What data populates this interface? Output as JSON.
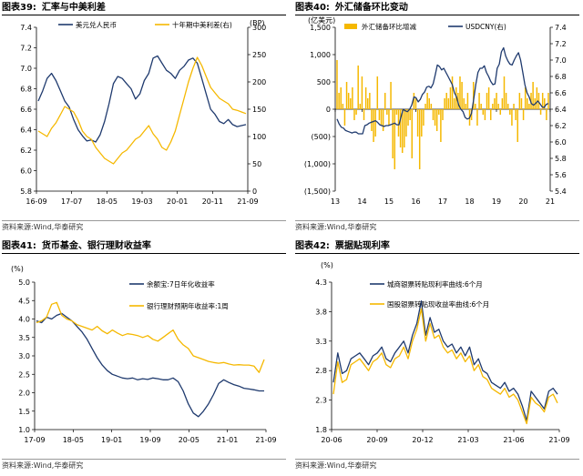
{
  "panels": [
    {
      "title_num": "图表39:",
      "title": "汇率与中美利差",
      "source": "资料来源:Wind,华泰研究",
      "chart_data": {
        "type": "line",
        "x_ticks": [
          "16-09",
          "17-07",
          "18-05",
          "19-03",
          "20-01",
          "20-11",
          "21-09"
        ],
        "yleft": {
          "label": "",
          "ticks": [
            5.8,
            6.0,
            6.2,
            6.4,
            6.6,
            6.8,
            7.0,
            7.2,
            7.4
          ],
          "range": [
            5.8,
            7.4
          ]
        },
        "yright": {
          "label": "(BP)",
          "ticks": [
            0,
            50,
            100,
            150,
            200,
            250,
            300
          ],
          "range": [
            0,
            300
          ]
        },
        "grid": false,
        "legend": "top",
        "series": [
          {
            "name": "美元兑人民币",
            "axis": "left",
            "color": "#1F3A6E",
            "y": [
              6.68,
              6.78,
              6.9,
              6.95,
              6.88,
              6.78,
              6.68,
              6.62,
              6.5,
              6.4,
              6.34,
              6.29,
              6.3,
              6.28,
              6.35,
              6.48,
              6.65,
              6.85,
              6.92,
              6.9,
              6.85,
              6.8,
              6.7,
              6.75,
              6.88,
              6.95,
              7.1,
              7.12,
              7.05,
              6.98,
              6.95,
              6.9,
              6.98,
              7.02,
              7.08,
              7.1,
              7.05,
              6.9,
              6.75,
              6.6,
              6.55,
              6.48,
              6.46,
              6.5,
              6.45,
              6.43,
              6.44,
              6.45
            ]
          },
          {
            "name": "十年期中美利差(右)",
            "axis": "right",
            "color": "#F5B800",
            "y": [
              110,
              105,
              100,
              115,
              125,
              140,
              155,
              150,
              145,
              130,
              110,
              100,
              95,
              80,
              70,
              60,
              55,
              50,
              60,
              70,
              75,
              85,
              95,
              100,
              110,
              120,
              105,
              95,
              80,
              75,
              90,
              110,
              140,
              170,
              200,
              225,
              245,
              230,
              210,
              190,
              180,
              170,
              165,
              160,
              150,
              148,
              145,
              142
            ]
          }
        ]
      }
    },
    {
      "title_num": "图表40:",
      "title": "外汇储备环比变动",
      "source": "资料来源:Wind,华泰研究",
      "chart_data": {
        "type": "bar",
        "x_ticks": [
          "13",
          "14",
          "15",
          "16",
          "17",
          "18",
          "19",
          "20",
          "21"
        ],
        "yleft": {
          "label": "(亿美元)",
          "ticks": [
            -1500,
            -1000,
            -500,
            0,
            500,
            1000,
            1500
          ],
          "tick_labels": [
            "(1,500)",
            "(1,000)",
            "(500)",
            "0",
            "500",
            "1,000",
            "1,500"
          ],
          "range": [
            -1500,
            1500
          ]
        },
        "yright": {
          "label": "",
          "ticks": [
            5.4,
            5.6,
            5.8,
            6.0,
            6.2,
            6.4,
            6.6,
            6.8,
            7.0,
            7.2,
            7.4
          ],
          "range": [
            5.4,
            7.4
          ]
        },
        "grid": false,
        "legend": "top",
        "series": [
          {
            "name": "外汇储备环比增减",
            "axis": "left",
            "type": "bar",
            "color": "#F5B800",
            "y": [
              900,
              300,
              400,
              100,
              -300,
              500,
              300,
              200,
              400,
              -200,
              -100,
              800,
              100,
              600,
              -200,
              400,
              200,
              300,
              -400,
              -600,
              -500,
              600,
              -200,
              -300,
              -400,
              300,
              -100,
              -300,
              500,
              -900,
              -1100,
              -100,
              -500,
              -700,
              -800,
              -700,
              -500,
              -300,
              -200,
              -900,
              300,
              200,
              -500,
              -1100,
              -500,
              -300,
              100,
              300,
              200,
              100,
              -200,
              -300,
              -400,
              -100,
              -600,
              -200,
              200,
              300,
              200,
              400,
              600,
              200,
              400,
              300,
              600,
              500,
              200,
              100,
              300,
              -300,
              -200,
              500,
              100,
              -300,
              300,
              100,
              -100,
              -200,
              300,
              400,
              -200,
              100,
              200,
              300,
              100,
              -100,
              200,
              600,
              300,
              100,
              -100,
              -300,
              100,
              -200,
              -600,
              300,
              200,
              -200,
              400,
              200,
              100,
              300,
              500,
              200,
              400,
              300,
              -100,
              300,
              200,
              -200,
              300
            ]
          },
          {
            "name": "USDCNY(右)",
            "axis": "right",
            "type": "line",
            "color": "#1F3A6E",
            "y": [
              6.28,
              6.22,
              6.18,
              6.17,
              6.14,
              6.13,
              6.12,
              6.11,
              6.12,
              6.12,
              6.1,
              6.1,
              6.1,
              6.2,
              6.21,
              6.23,
              6.24,
              6.25,
              6.26,
              6.24,
              6.21,
              6.2,
              6.19,
              6.2,
              6.2,
              6.21,
              6.22,
              6.23,
              6.21,
              6.21,
              6.31,
              6.4,
              6.38,
              6.37,
              6.4,
              6.45,
              6.55,
              6.54,
              6.49,
              6.52,
              6.58,
              6.61,
              6.67,
              6.68,
              6.66,
              6.71,
              6.82,
              6.94,
              6.92,
              6.88,
              6.9,
              6.85,
              6.8,
              6.75,
              6.7,
              6.6,
              6.55,
              6.45,
              6.4,
              6.37,
              6.3,
              6.28,
              6.29,
              6.35,
              6.52,
              6.7,
              6.85,
              6.9,
              6.9,
              6.93,
              6.85,
              6.8,
              6.74,
              6.7,
              6.71,
              6.9,
              6.95,
              7.1,
              7.15,
              7.05,
              6.99,
              6.95,
              6.94,
              7.0,
              7.05,
              7.09,
              7.0,
              6.85,
              6.7,
              6.6,
              6.55,
              6.47,
              6.45,
              6.47,
              6.5,
              6.47,
              6.43,
              6.42,
              6.46,
              6.47
            ]
          }
        ]
      }
    },
    {
      "title_num": "图表41:",
      "title": "货币基金、银行理财收益率",
      "source": "资料来源:Wind,华泰研究",
      "chart_data": {
        "type": "line",
        "x_ticks": [
          "17-09",
          "18-05",
          "19-01",
          "19-09",
          "20-05",
          "21-01",
          "21-09"
        ],
        "yleft": {
          "label": "(%)",
          "ticks": [
            1.0,
            1.5,
            2.0,
            2.5,
            3.0,
            3.5,
            4.0,
            4.5,
            5.0
          ],
          "range": [
            1.0,
            5.0
          ]
        },
        "grid": false,
        "legend": "top-right",
        "series": [
          {
            "name": "余额宝:7日年化收益率",
            "axis": "left",
            "color": "#1F3A6E",
            "y": [
              3.95,
              3.9,
              4.05,
              4.0,
              4.1,
              4.15,
              4.05,
              3.95,
              3.8,
              3.65,
              3.45,
              3.2,
              2.95,
              2.75,
              2.6,
              2.5,
              2.45,
              2.4,
              2.38,
              2.4,
              2.35,
              2.38,
              2.36,
              2.4,
              2.38,
              2.35,
              2.35,
              2.4,
              2.3,
              2.05,
              1.7,
              1.45,
              1.35,
              1.5,
              1.7,
              1.95,
              2.25,
              2.35,
              2.28,
              2.22,
              2.18,
              2.12,
              2.1,
              2.08,
              2.05,
              2.05
            ]
          },
          {
            "name": "银行理财预期年收益率:1周",
            "axis": "left",
            "color": "#F5B800",
            "y": [
              3.9,
              3.95,
              4.05,
              4.4,
              4.45,
              4.1,
              4.0,
              3.95,
              3.85,
              3.8,
              3.75,
              3.7,
              3.8,
              3.68,
              3.6,
              3.7,
              3.62,
              3.55,
              3.6,
              3.58,
              3.55,
              3.5,
              3.55,
              3.45,
              3.4,
              3.5,
              3.6,
              3.7,
              3.45,
              3.3,
              3.2,
              3.0,
              2.95,
              2.9,
              2.85,
              2.82,
              2.8,
              2.82,
              2.78,
              2.75,
              2.76,
              2.75,
              2.75,
              2.72,
              2.55,
              2.9
            ]
          }
        ]
      }
    },
    {
      "title_num": "图表42:",
      "title": "票据贴现利率",
      "source": "资料来源:Wind,华泰研究",
      "chart_data": {
        "type": "line",
        "x_ticks": [
          "20-06",
          "20-09",
          "20-12",
          "21-03",
          "21-06",
          "21-09"
        ],
        "yleft": {
          "label": "(%)",
          "ticks": [
            1.8,
            2.3,
            2.8,
            3.3,
            3.8,
            4.3
          ],
          "range": [
            1.8,
            4.3
          ]
        },
        "grid": false,
        "legend": "top-right",
        "series": [
          {
            "name": "城商银票转贴现利率曲线:6个月",
            "axis": "left",
            "color": "#1F3A6E",
            "y": [
              2.6,
              3.1,
              2.75,
              2.8,
              3.0,
              3.05,
              3.1,
              3.0,
              2.9,
              3.05,
              3.1,
              3.2,
              3.0,
              2.95,
              3.1,
              3.2,
              3.3,
              3.1,
              3.4,
              3.6,
              3.98,
              3.4,
              3.7,
              3.45,
              3.5,
              3.3,
              3.2,
              3.25,
              3.1,
              3.2,
              3.05,
              3.2,
              2.9,
              3.0,
              2.8,
              2.75,
              2.6,
              2.55,
              2.5,
              2.6,
              2.45,
              2.5,
              2.4,
              2.2,
              1.95,
              2.45,
              2.35,
              2.25,
              2.15,
              2.45,
              2.5,
              2.4
            ]
          },
          {
            "name": "国股银票转贴现收益率曲线:6个月",
            "axis": "left",
            "color": "#F5B800",
            "y": [
              2.4,
              2.95,
              2.6,
              2.65,
              2.9,
              2.95,
              3.0,
              2.9,
              2.8,
              2.95,
              3.0,
              3.1,
              2.9,
              2.85,
              3.0,
              3.05,
              3.2,
              3.0,
              3.3,
              3.5,
              3.85,
              3.3,
              3.6,
              3.35,
              3.4,
              3.2,
              3.1,
              3.15,
              3.0,
              3.1,
              2.95,
              3.05,
              2.8,
              2.9,
              2.7,
              2.65,
              2.5,
              2.45,
              2.4,
              2.5,
              2.35,
              2.4,
              2.3,
              2.1,
              1.9,
              2.35,
              2.25,
              2.2,
              2.1,
              2.35,
              2.4,
              2.25
            ]
          }
        ]
      }
    }
  ]
}
